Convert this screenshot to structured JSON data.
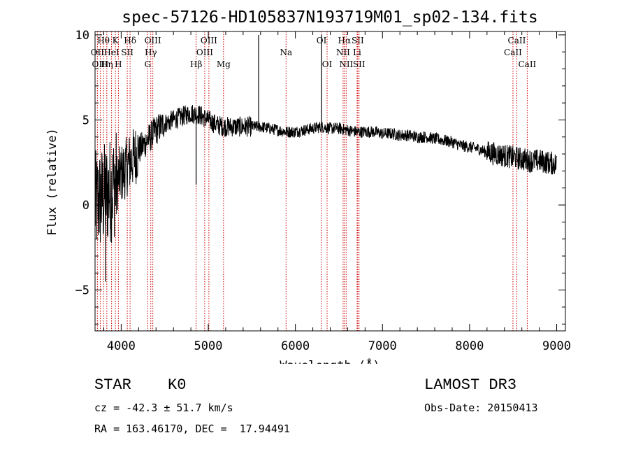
{
  "chart_data": {
    "type": "line",
    "title": "spec-57126-HD105837N193719M01_sp02-134.fits",
    "xlabel": "Wavelength (Å)",
    "ylabel": "Flux (relative)",
    "xlim": [
      3700,
      9100
    ],
    "ylim": [
      -7.4,
      10.2
    ],
    "xticks": [
      4000,
      5000,
      6000,
      7000,
      8000,
      9000
    ],
    "yticks": [
      -5,
      0,
      5,
      10
    ],
    "spectrum": {
      "x": [
        3700,
        3800,
        3900,
        4000,
        4100,
        4200,
        4300,
        4400,
        4500,
        4600,
        4700,
        4800,
        4900,
        5000,
        5100,
        5200,
        5300,
        5400,
        5500,
        5600,
        5700,
        5800,
        5900,
        6000,
        6100,
        6200,
        6300,
        6400,
        6500,
        6600,
        6700,
        6800,
        6900,
        7000,
        7100,
        7200,
        7300,
        7400,
        7500,
        7600,
        7700,
        7800,
        7900,
        8000,
        8100,
        8200,
        8300,
        8400,
        8500,
        8600,
        8700,
        8800,
        8900,
        9000
      ],
      "y": [
        0.0,
        0.5,
        1.0,
        1.8,
        2.5,
        3.2,
        3.8,
        4.4,
        4.8,
        5.0,
        5.2,
        5.4,
        5.3,
        5.0,
        4.7,
        4.6,
        4.6,
        4.6,
        4.6,
        4.6,
        4.5,
        4.4,
        4.3,
        4.3,
        4.4,
        4.5,
        4.6,
        4.5,
        4.5,
        4.4,
        4.3,
        4.3,
        4.3,
        4.2,
        4.2,
        4.1,
        4.1,
        4.0,
        4.0,
        3.9,
        3.8,
        3.7,
        3.5,
        3.4,
        3.3,
        3.1,
        3.0,
        2.9,
        2.8,
        2.7,
        2.6,
        2.6,
        2.5,
        2.4
      ]
    },
    "spikes": [
      {
        "x": 5578,
        "y": 10.0
      },
      {
        "x": 6300,
        "y": 10.0
      },
      {
        "x": 4860,
        "y": 1.2
      },
      {
        "x": 3820,
        "y": -4.5
      }
    ],
    "lines": [
      {
        "label": "Hθ",
        "x": 3797,
        "row": 0
      },
      {
        "label": "OII",
        "x": 3727,
        "row": 1
      },
      {
        "label": "OIII",
        "x": 3760,
        "row": 2
      },
      {
        "label": "K",
        "x": 3934,
        "row": 0
      },
      {
        "label": "HeI",
        "x": 3889,
        "row": 1
      },
      {
        "label": "Hη",
        "x": 3835,
        "row": 2
      },
      {
        "label": "H",
        "x": 3968,
        "row": 2
      },
      {
        "label": "SII",
        "x": 4070,
        "row": 1
      },
      {
        "label": "Hδ",
        "x": 4102,
        "row": 0
      },
      {
        "label": "OIII",
        "x": 4363,
        "row": 0
      },
      {
        "label": "Hγ",
        "x": 4340,
        "row": 1
      },
      {
        "label": "G",
        "x": 4305,
        "row": 2
      },
      {
        "label": "OIII",
        "x": 5007,
        "row": 0
      },
      {
        "label": "OIII",
        "x": 4959,
        "row": 1
      },
      {
        "label": "Hβ",
        "x": 4861,
        "row": 2
      },
      {
        "label": "Mg",
        "x": 5175,
        "row": 2
      },
      {
        "label": "Na",
        "x": 5893,
        "row": 1
      },
      {
        "label": "OI",
        "x": 6300,
        "row": 0
      },
      {
        "label": "OI",
        "x": 6364,
        "row": 2
      },
      {
        "label": "Hα",
        "x": 6563,
        "row": 0
      },
      {
        "label": "SII",
        "x": 6716,
        "row": 0
      },
      {
        "label": "NII",
        "x": 6548,
        "row": 1
      },
      {
        "label": "Li",
        "x": 6708,
        "row": 1
      },
      {
        "label": "NII",
        "x": 6583,
        "row": 2
      },
      {
        "label": "SII",
        "x": 6731,
        "row": 2
      },
      {
        "label": "CaII",
        "x": 8542,
        "row": 0
      },
      {
        "label": "CaII",
        "x": 8498,
        "row": 1
      },
      {
        "label": "CaII",
        "x": 8662,
        "row": 2
      }
    ],
    "line_color": "#cc0000"
  },
  "info": {
    "class": "STAR",
    "subclass": "K0",
    "survey": "LAMOST DR3",
    "cz": "cz = -42.3 ± 51.7 km/s",
    "obs_date": "Obs-Date: 20150413",
    "radec": "RA = 163.46170, DEC =  17.94491"
  }
}
